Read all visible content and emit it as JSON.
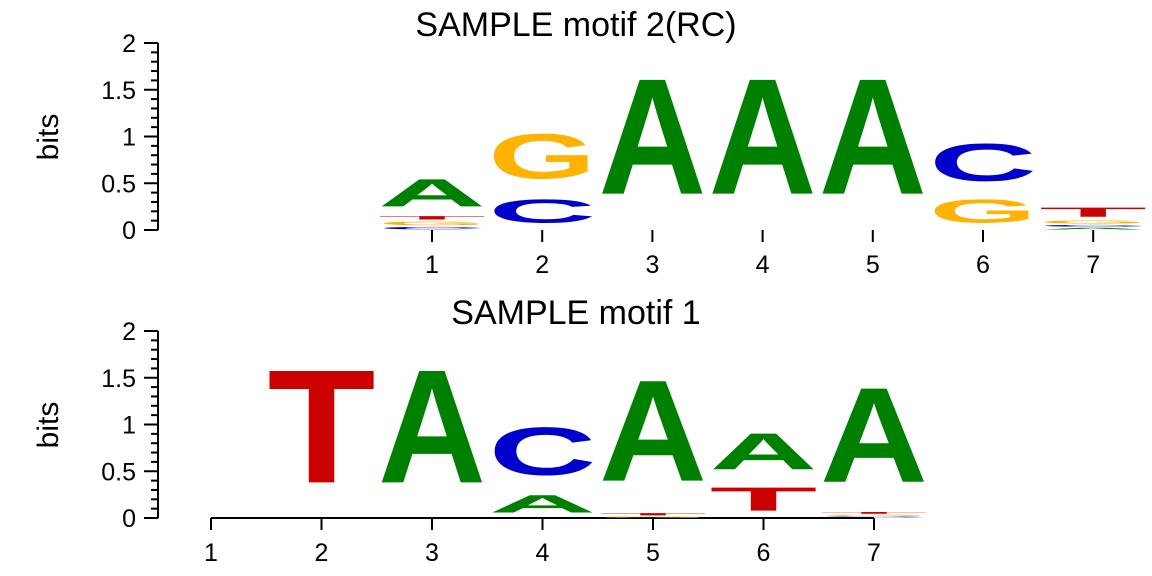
{
  "colors": {
    "A": "#008000",
    "C": "#0000CC",
    "G": "#FFB300",
    "T": "#CC0000"
  },
  "chart_data": [
    {
      "type": "sequence-logo",
      "title": "SAMPLE motif 2(RC)",
      "ylabel": "bits",
      "ylim": [
        0,
        2
      ],
      "yticks": [
        "0",
        "0.5",
        "1",
        "1.5",
        "2"
      ],
      "xticks": [
        "1",
        "2",
        "3",
        "4",
        "5",
        "6",
        "7"
      ],
      "positions": [
        {
          "pos": 1,
          "stack": [
            {
              "letter": "C",
              "bits": 0.04
            },
            {
              "letter": "G",
              "bits": 0.06
            },
            {
              "letter": "T",
              "bits": 0.06
            },
            {
              "letter": "A",
              "bits": 0.47
            }
          ]
        },
        {
          "pos": 2,
          "stack": [
            {
              "letter": "C",
              "bits": 0.4
            },
            {
              "letter": "G",
              "bits": 0.77
            }
          ]
        },
        {
          "pos": 3,
          "stack": [
            {
              "letter": "A",
              "bits": 1.98
            }
          ]
        },
        {
          "pos": 4,
          "stack": [
            {
              "letter": "A",
              "bits": 1.98
            }
          ]
        },
        {
          "pos": 5,
          "stack": [
            {
              "letter": "A",
              "bits": 1.98
            }
          ]
        },
        {
          "pos": 6,
          "stack": [
            {
              "letter": "G",
              "bits": 0.4
            },
            {
              "letter": "C",
              "bits": 0.64
            }
          ]
        },
        {
          "pos": 7,
          "stack": [
            {
              "letter": "A",
              "bits": 0.03
            },
            {
              "letter": "C",
              "bits": 0.03
            },
            {
              "letter": "G",
              "bits": 0.05
            },
            {
              "letter": "T",
              "bits": 0.16
            }
          ]
        }
      ]
    },
    {
      "type": "sequence-logo",
      "title": "SAMPLE motif 1",
      "ylabel": "bits",
      "ylim": [
        0,
        2
      ],
      "yticks": [
        "0",
        "0.5",
        "1",
        "1.5",
        "2"
      ],
      "xticks": [
        "1",
        "2",
        "3",
        "4",
        "5",
        "6",
        "7"
      ],
      "positions": [
        {
          "pos": 2,
          "stack": [
            {
              "letter": "T",
              "bits": 1.94
            }
          ]
        },
        {
          "pos": 3,
          "stack": [
            {
              "letter": "A",
              "bits": 1.94
            }
          ]
        },
        {
          "pos": 4,
          "stack": [
            {
              "letter": "A",
              "bits": 0.3
            },
            {
              "letter": "C",
              "bits": 0.82
            }
          ]
        },
        {
          "pos": 5,
          "stack": [
            {
              "letter": "G",
              "bits": 0.02
            },
            {
              "letter": "T",
              "bits": 0.04
            },
            {
              "letter": "A",
              "bits": 1.73
            }
          ]
        },
        {
          "pos": 6,
          "stack": [
            {
              "letter": "T",
              "bits": 0.4
            },
            {
              "letter": "A",
              "bits": 0.62
            }
          ]
        },
        {
          "pos": 7,
          "stack": [
            {
              "letter": "C",
              "bits": 0.02
            },
            {
              "letter": "G",
              "bits": 0.02
            },
            {
              "letter": "T",
              "bits": 0.03
            },
            {
              "letter": "A",
              "bits": 1.62
            }
          ]
        }
      ]
    }
  ]
}
